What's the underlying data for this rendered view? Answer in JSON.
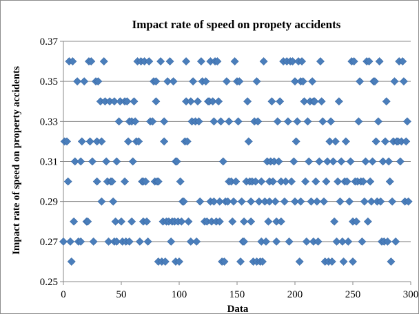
{
  "chart_data": {
    "type": "scatter",
    "title": "Impact rate of speed on propety accidents",
    "xlabel": "Data",
    "ylabel": "Impact rate  of  speed on  property  accidents",
    "xlim": [
      0,
      300
    ],
    "ylim": [
      0.25,
      0.37
    ],
    "x_ticks": [
      0,
      50,
      100,
      150,
      200,
      250,
      300
    ],
    "y_ticks": [
      0.25,
      0.27,
      0.29,
      0.31,
      0.33,
      0.35,
      0.37
    ],
    "x_tick_labels": [
      "0",
      "50",
      "100",
      "150",
      "200",
      "250",
      "300"
    ],
    "y_tick_labels": [
      "0.25",
      "0.27",
      "0.29",
      "0.31",
      "0.33",
      "0.35",
      "0.37"
    ],
    "grid": "horizontal",
    "legend": "none",
    "marker_color": "#4a7ebb",
    "marker": "diamond",
    "series": [
      {
        "points": [
          [
            0,
            0.27
          ],
          [
            1,
            0.32
          ],
          [
            3,
            0.32
          ],
          [
            4,
            0.3
          ],
          [
            5,
            0.36
          ],
          [
            6,
            0.27
          ],
          [
            7,
            0.26
          ],
          [
            8,
            0.36
          ],
          [
            9,
            0.28
          ],
          [
            10,
            0.31
          ],
          [
            12,
            0.35
          ],
          [
            13,
            0.27
          ],
          [
            15,
            0.27
          ],
          [
            15,
            0.31
          ],
          [
            16,
            0.32
          ],
          [
            18,
            0.35
          ],
          [
            20,
            0.28
          ],
          [
            21,
            0.28
          ],
          [
            22,
            0.36
          ],
          [
            23,
            0.32
          ],
          [
            24,
            0.36
          ],
          [
            25,
            0.31
          ],
          [
            26,
            0.27
          ],
          [
            28,
            0.35
          ],
          [
            29,
            0.32
          ],
          [
            29,
            0.3
          ],
          [
            30,
            0.35
          ],
          [
            32,
            0.34
          ],
          [
            33,
            0.32
          ],
          [
            33,
            0.29
          ],
          [
            35,
            0.36
          ],
          [
            36,
            0.34
          ],
          [
            37,
            0.31
          ],
          [
            38,
            0.3
          ],
          [
            39,
            0.27
          ],
          [
            40,
            0.34
          ],
          [
            41,
            0.3
          ],
          [
            42,
            0.3
          ],
          [
            43,
            0.29
          ],
          [
            44,
            0.34
          ],
          [
            44,
            0.27
          ],
          [
            45,
            0.28
          ],
          [
            46,
            0.31
          ],
          [
            46,
            0.27
          ],
          [
            48,
            0.33
          ],
          [
            49,
            0.34
          ],
          [
            50,
            0.28
          ],
          [
            51,
            0.27
          ],
          [
            53,
            0.34
          ],
          [
            53,
            0.3
          ],
          [
            54,
            0.27
          ],
          [
            55,
            0.34
          ],
          [
            56,
            0.32
          ],
          [
            57,
            0.33
          ],
          [
            57,
            0.27
          ],
          [
            59,
            0.28
          ],
          [
            59,
            0.33
          ],
          [
            60,
            0.31
          ],
          [
            61,
            0.34
          ],
          [
            62,
            0.33
          ],
          [
            63,
            0.32
          ],
          [
            64,
            0.36
          ],
          [
            65,
            0.32
          ],
          [
            66,
            0.27
          ],
          [
            67,
            0.36
          ],
          [
            68,
            0.3
          ],
          [
            69,
            0.28
          ],
          [
            69,
            0.3
          ],
          [
            70,
            0.36
          ],
          [
            71,
            0.3
          ],
          [
            72,
            0.28
          ],
          [
            73,
            0.27
          ],
          [
            74,
            0.36
          ],
          [
            75,
            0.33
          ],
          [
            77,
            0.33
          ],
          [
            78,
            0.35
          ],
          [
            79,
            0.3
          ],
          [
            80,
            0.35
          ],
          [
            80,
            0.34
          ],
          [
            81,
            0.3
          ],
          [
            82,
            0.26
          ],
          [
            82,
            0.3
          ],
          [
            84,
            0.36
          ],
          [
            85,
            0.26
          ],
          [
            86,
            0.28
          ],
          [
            87,
            0.32
          ],
          [
            87,
            0.33
          ],
          [
            88,
            0.26
          ],
          [
            89,
            0.28
          ],
          [
            90,
            0.35
          ],
          [
            91,
            0.28
          ],
          [
            92,
            0.36
          ],
          [
            93,
            0.27
          ],
          [
            94,
            0.28
          ],
          [
            95,
            0.35
          ],
          [
            96,
            0.28
          ],
          [
            97,
            0.31
          ],
          [
            97,
            0.26
          ],
          [
            98,
            0.31
          ],
          [
            99,
            0.28
          ],
          [
            100,
            0.26
          ],
          [
            101,
            0.3
          ],
          [
            102,
            0.28
          ],
          [
            103,
            0.29
          ],
          [
            104,
            0.29
          ],
          [
            105,
            0.32
          ],
          [
            106,
            0.36
          ],
          [
            106,
            0.34
          ],
          [
            107,
            0.32
          ],
          [
            108,
            0.28
          ],
          [
            110,
            0.34
          ],
          [
            110,
            0.27
          ],
          [
            111,
            0.33
          ],
          [
            112,
            0.35
          ],
          [
            114,
            0.33
          ],
          [
            115,
            0.27
          ],
          [
            116,
            0.34
          ],
          [
            117,
            0.33
          ],
          [
            118,
            0.29
          ],
          [
            119,
            0.36
          ],
          [
            120,
            0.35
          ],
          [
            122,
            0.28
          ],
          [
            123,
            0.35
          ],
          [
            124,
            0.28
          ],
          [
            125,
            0.34
          ],
          [
            126,
            0.34
          ],
          [
            127,
            0.36
          ],
          [
            127,
            0.29
          ],
          [
            128,
            0.28
          ],
          [
            129,
            0.34
          ],
          [
            130,
            0.33
          ],
          [
            130,
            0.29
          ],
          [
            131,
            0.36
          ],
          [
            132,
            0.28
          ],
          [
            133,
            0.36
          ],
          [
            134,
            0.34
          ],
          [
            135,
            0.28
          ],
          [
            135,
            0.29
          ],
          [
            136,
            0.33
          ],
          [
            137,
            0.26
          ],
          [
            138,
            0.31
          ],
          [
            139,
            0.26
          ],
          [
            140,
            0.29
          ],
          [
            141,
            0.35
          ],
          [
            142,
            0.29
          ],
          [
            143,
            0.3
          ],
          [
            143,
            0.33
          ],
          [
            145,
            0.3
          ],
          [
            146,
            0.28
          ],
          [
            147,
            0.29
          ],
          [
            148,
            0.36
          ],
          [
            149,
            0.3
          ],
          [
            150,
            0.35
          ],
          [
            151,
            0.33
          ],
          [
            152,
            0.35
          ],
          [
            153,
            0.26
          ],
          [
            154,
            0.29
          ],
          [
            155,
            0.27
          ],
          [
            156,
            0.28
          ],
          [
            156,
            0.27
          ],
          [
            158,
            0.3
          ],
          [
            159,
            0.34
          ],
          [
            160,
            0.32
          ],
          [
            161,
            0.3
          ],
          [
            162,
            0.28
          ],
          [
            162,
            0.29
          ],
          [
            163,
            0.3
          ],
          [
            164,
            0.26
          ],
          [
            165,
            0.33
          ],
          [
            166,
            0.3
          ],
          [
            167,
            0.35
          ],
          [
            167,
            0.26
          ],
          [
            168,
            0.33
          ],
          [
            169,
            0.29
          ],
          [
            170,
            0.26
          ],
          [
            171,
            0.27
          ],
          [
            171,
            0.3
          ],
          [
            172,
            0.26
          ],
          [
            173,
            0.36
          ],
          [
            174,
            0.29
          ],
          [
            175,
            0.27
          ],
          [
            176,
            0.31
          ],
          [
            177,
            0.28
          ],
          [
            178,
            0.3
          ],
          [
            178,
            0.29
          ],
          [
            179,
            0.31
          ],
          [
            180,
            0.34
          ],
          [
            181,
            0.3
          ],
          [
            182,
            0.31
          ],
          [
            183,
            0.29
          ],
          [
            184,
            0.27
          ],
          [
            184,
            0.28
          ],
          [
            185,
            0.33
          ],
          [
            186,
            0.31
          ],
          [
            187,
            0.34
          ],
          [
            188,
            0.3
          ],
          [
            188,
            0.28
          ],
          [
            190,
            0.36
          ],
          [
            191,
            0.29
          ],
          [
            192,
            0.3
          ],
          [
            193,
            0.36
          ],
          [
            194,
            0.33
          ],
          [
            195,
            0.27
          ],
          [
            196,
            0.36
          ],
          [
            197,
            0.3
          ],
          [
            198,
            0.36
          ],
          [
            199,
            0.31
          ],
          [
            200,
            0.35
          ],
          [
            200,
            0.29
          ],
          [
            201,
            0.32
          ],
          [
            202,
            0.33
          ],
          [
            203,
            0.36
          ],
          [
            204,
            0.26
          ],
          [
            205,
            0.35
          ],
          [
            205,
            0.29
          ],
          [
            206,
            0.36
          ],
          [
            207,
            0.35
          ],
          [
            208,
            0.34
          ],
          [
            209,
            0.3
          ],
          [
            210,
            0.27
          ],
          [
            211,
            0.33
          ],
          [
            212,
            0.31
          ],
          [
            213,
            0.34
          ],
          [
            214,
            0.29
          ],
          [
            215,
            0.35
          ],
          [
            216,
            0.34
          ],
          [
            216,
            0.27
          ],
          [
            217,
            0.34
          ],
          [
            218,
            0.3
          ],
          [
            219,
            0.29
          ],
          [
            220,
            0.27
          ],
          [
            221,
            0.31
          ],
          [
            222,
            0.36
          ],
          [
            223,
            0.34
          ],
          [
            224,
            0.33
          ],
          [
            225,
            0.29
          ],
          [
            226,
            0.26
          ],
          [
            227,
            0.3
          ],
          [
            228,
            0.31
          ],
          [
            229,
            0.26
          ],
          [
            230,
            0.32
          ],
          [
            231,
            0.33
          ],
          [
            232,
            0.26
          ],
          [
            233,
            0.31
          ],
          [
            234,
            0.28
          ],
          [
            235,
            0.32
          ],
          [
            236,
            0.27
          ],
          [
            237,
            0.3
          ],
          [
            238,
            0.34
          ],
          [
            239,
            0.29
          ],
          [
            240,
            0.31
          ],
          [
            241,
            0.27
          ],
          [
            242,
            0.26
          ],
          [
            243,
            0.3
          ],
          [
            244,
            0.32
          ],
          [
            245,
            0.3
          ],
          [
            246,
            0.27
          ],
          [
            247,
            0.29
          ],
          [
            248,
            0.31
          ],
          [
            249,
            0.36
          ],
          [
            250,
            0.28
          ],
          [
            250,
            0.26
          ],
          [
            251,
            0.36
          ],
          [
            252,
            0.3
          ],
          [
            253,
            0.28
          ],
          [
            254,
            0.3
          ],
          [
            255,
            0.33
          ],
          [
            256,
            0.35
          ],
          [
            257,
            0.3
          ],
          [
            258,
            0.27
          ],
          [
            259,
            0.3
          ],
          [
            260,
            0.29
          ],
          [
            261,
            0.31
          ],
          [
            262,
            0.36
          ],
          [
            263,
            0.28
          ],
          [
            264,
            0.36
          ],
          [
            265,
            0.3
          ],
          [
            266,
            0.29
          ],
          [
            267,
            0.31
          ],
          [
            268,
            0.35
          ],
          [
            269,
            0.35
          ],
          [
            270,
            0.32
          ],
          [
            271,
            0.29
          ],
          [
            272,
            0.33
          ],
          [
            273,
            0.36
          ],
          [
            274,
            0.29
          ],
          [
            275,
            0.27
          ],
          [
            276,
            0.31
          ],
          [
            277,
            0.27
          ],
          [
            278,
            0.32
          ],
          [
            279,
            0.34
          ],
          [
            280,
            0.27
          ],
          [
            281,
            0.31
          ],
          [
            282,
            0.3
          ],
          [
            283,
            0.26
          ],
          [
            284,
            0.29
          ],
          [
            285,
            0.32
          ],
          [
            286,
            0.35
          ],
          [
            287,
            0.27
          ],
          [
            288,
            0.32
          ],
          [
            289,
            0.32
          ],
          [
            290,
            0.36
          ],
          [
            291,
            0.31
          ],
          [
            292,
            0.32
          ],
          [
            293,
            0.36
          ],
          [
            294,
            0.35
          ],
          [
            295,
            0.29
          ],
          [
            296,
            0.32
          ],
          [
            297,
            0.33
          ],
          [
            298,
            0.29
          ]
        ]
      }
    ]
  }
}
